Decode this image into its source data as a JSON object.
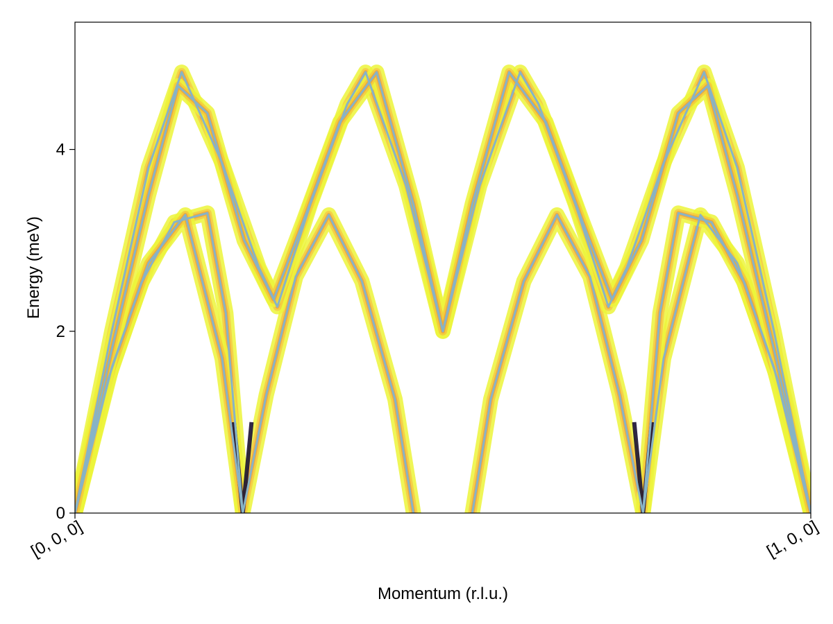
{
  "chart_data": {
    "type": "line",
    "title": "",
    "xlabel": "Momentum (r.l.u.)",
    "ylabel": "Energy (meV)",
    "xlim": [
      0,
      1
    ],
    "ylim": [
      0,
      5.4
    ],
    "x_ticks": [
      {
        "value": 0,
        "label": "[0, 0, 0]"
      },
      {
        "value": 1,
        "label": "[1, 0, 0]"
      }
    ],
    "y_ticks": [
      {
        "value": 0,
        "label": "0"
      },
      {
        "value": 2,
        "label": "2"
      },
      {
        "value": 4,
        "label": "4"
      }
    ],
    "grid": false,
    "legend": "none",
    "colors": {
      "dispersion_line": "#87b3c6",
      "intensity_low": "#ecf53a",
      "intensity_mid": "#f7b23c",
      "intensity_high": "#e8643a",
      "intensity_peak": "#1a1033"
    },
    "intensity_map": {
      "colormap": "inferno (reversed)",
      "description_values": "broadened spectral weight around dispersion curves"
    },
    "series": [
      {
        "points": [
          [
            0,
            0
          ],
          [
            0.045,
            1.47
          ],
          [
            0.09,
            2.53
          ],
          [
            0.135,
            3.2
          ],
          [
            0.18,
            3.3
          ],
          [
            0.205,
            2.2
          ],
          [
            0.228,
            0
          ]
        ]
      },
      {
        "points": [
          [
            0,
            0
          ],
          [
            0.05,
            1.6
          ],
          [
            0.1,
            2.75
          ],
          [
            0.15,
            3.28
          ],
          [
            0.2,
            1.7
          ],
          [
            0.228,
            0
          ],
          [
            0.26,
            1.3
          ],
          [
            0.3,
            2.6
          ],
          [
            0.345,
            3.28
          ],
          [
            0.39,
            2.55
          ],
          [
            0.435,
            1.25
          ],
          [
            0.46,
            0
          ]
        ]
      },
      {
        "points": [
          [
            0.54,
            0
          ],
          [
            0.565,
            1.25
          ],
          [
            0.61,
            2.55
          ],
          [
            0.655,
            3.28
          ],
          [
            0.7,
            2.6
          ],
          [
            0.74,
            1.3
          ],
          [
            0.772,
            0
          ],
          [
            0.8,
            1.7
          ],
          [
            0.85,
            3.28
          ],
          [
            0.9,
            2.75
          ],
          [
            0.95,
            1.6
          ],
          [
            1,
            0
          ]
        ]
      },
      {
        "points": [
          [
            0.772,
            0
          ],
          [
            0.795,
            2.2
          ],
          [
            0.82,
            3.3
          ],
          [
            0.865,
            3.2
          ],
          [
            0.91,
            2.53
          ],
          [
            0.955,
            1.47
          ],
          [
            1,
            0
          ]
        ]
      },
      {
        "points": [
          [
            0,
            0
          ],
          [
            0.05,
            2.0
          ],
          [
            0.1,
            3.8
          ],
          [
            0.145,
            4.85
          ],
          [
            0.2,
            3.85
          ],
          [
            0.25,
            2.7
          ],
          [
            0.275,
            2.27
          ],
          [
            0.32,
            3.4
          ],
          [
            0.37,
            4.5
          ],
          [
            0.395,
            4.85
          ],
          [
            0.45,
            3.6
          ],
          [
            0.5,
            2.0
          ],
          [
            0.55,
            3.6
          ],
          [
            0.605,
            4.85
          ],
          [
            0.63,
            4.5
          ],
          [
            0.68,
            3.4
          ],
          [
            0.725,
            2.27
          ],
          [
            0.75,
            2.7
          ],
          [
            0.8,
            3.85
          ],
          [
            0.855,
            4.85
          ],
          [
            0.9,
            3.8
          ],
          [
            0.95,
            2.0
          ],
          [
            1,
            0
          ]
        ]
      },
      {
        "points": [
          [
            0,
            0
          ],
          [
            0.05,
            1.8
          ],
          [
            0.1,
            3.5
          ],
          [
            0.14,
            4.7
          ],
          [
            0.18,
            4.4
          ],
          [
            0.23,
            3.0
          ],
          [
            0.27,
            2.35
          ],
          [
            0.31,
            3.2
          ],
          [
            0.36,
            4.3
          ],
          [
            0.41,
            4.85
          ],
          [
            0.46,
            3.4
          ],
          [
            0.5,
            2.0
          ],
          [
            0.54,
            3.4
          ],
          [
            0.59,
            4.85
          ],
          [
            0.64,
            4.3
          ],
          [
            0.69,
            3.2
          ],
          [
            0.73,
            2.35
          ],
          [
            0.77,
            3.0
          ],
          [
            0.82,
            4.4
          ],
          [
            0.86,
            4.7
          ],
          [
            0.9,
            3.5
          ],
          [
            0.95,
            1.8
          ],
          [
            1,
            0
          ]
        ]
      }
    ]
  }
}
